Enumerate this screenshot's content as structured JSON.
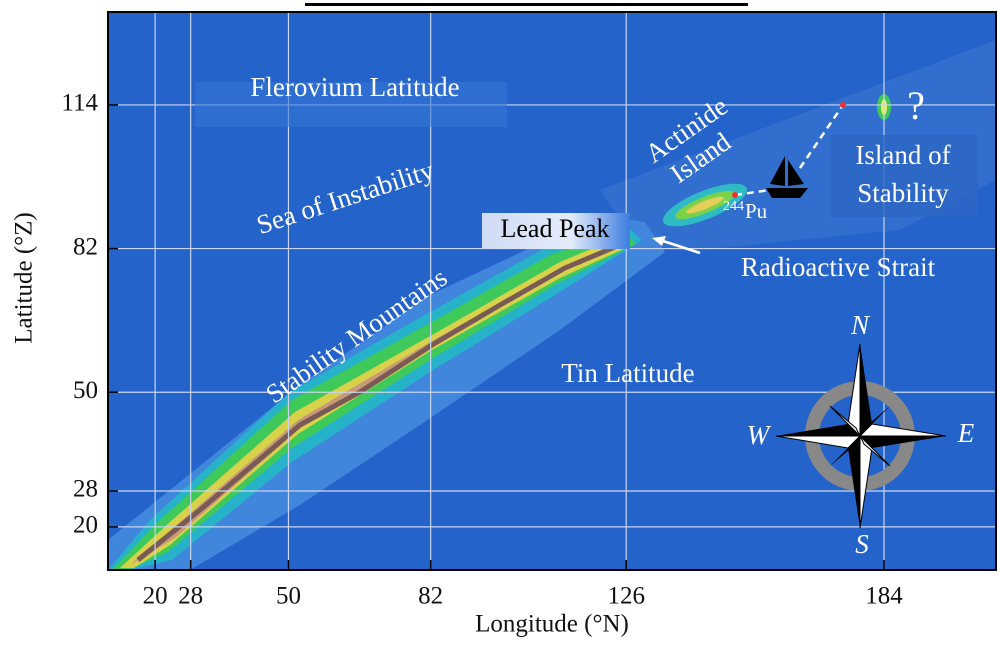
{
  "axes": {
    "xlabel": "Longitude (°N)",
    "ylabel": "Latitude (°Z)",
    "xlim": [
      9.4,
      209.2
    ],
    "ylim": [
      10.4,
      134.7
    ],
    "xticks": [
      20,
      28,
      50,
      82,
      126,
      184
    ],
    "yticks": [
      20,
      28,
      50,
      82,
      114
    ],
    "grid": true
  },
  "annotations": {
    "flerovium": "Flerovium Latitude",
    "sea": "Sea of Instability",
    "actinide": [
      "Actinide",
      "Island"
    ],
    "island": [
      "Island of",
      "Stability"
    ],
    "question": "?",
    "lead": "Lead Peak",
    "strait": "Radioactive Strait",
    "mountains": "Stability Mountains",
    "tin": "Tin Latitude",
    "pu_mass": "244",
    "pu_symbol": "Pu"
  },
  "compass": {
    "north": "N",
    "east": "E",
    "south": "S",
    "west": "W"
  }
}
